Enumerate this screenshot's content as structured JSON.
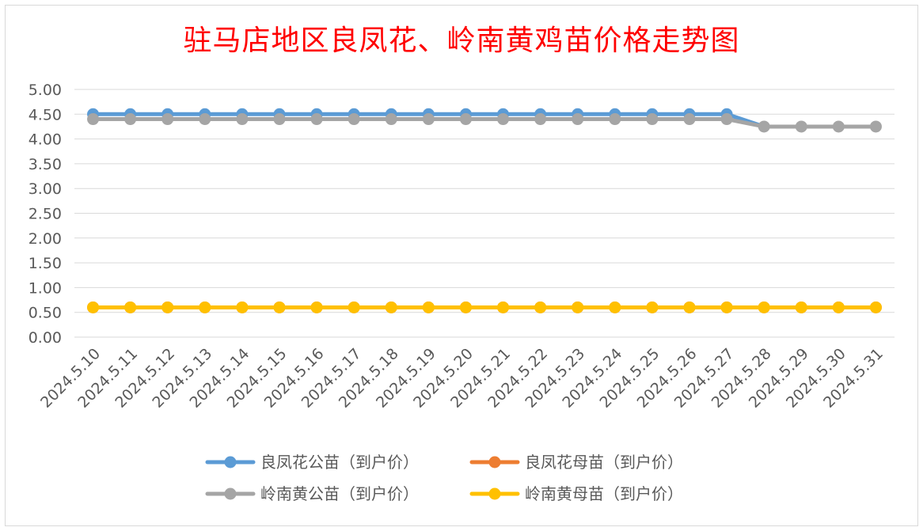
{
  "chart_data": {
    "type": "line",
    "title": "驻马店地区良凤花、岭南黄鸡苗价格走势图",
    "xlabel": "",
    "ylabel": "",
    "ylim": [
      0,
      5
    ],
    "y_ticks": [
      "0.00",
      "0.50",
      "1.00",
      "1.50",
      "2.00",
      "2.50",
      "3.00",
      "3.50",
      "4.00",
      "4.50",
      "5.00"
    ],
    "grid": true,
    "legend_position": "bottom",
    "categories": [
      "2024.5.10",
      "2024.5.11",
      "2024.5.12",
      "2024.5.13",
      "2024.5.14",
      "2024.5.15",
      "2024.5.16",
      "2024.5.17",
      "2024.5.18",
      "2024.5.19",
      "2024.5.20",
      "2024.5.21",
      "2024.5.22",
      "2024.5.23",
      "2024.5.24",
      "2024.5.25",
      "2024.5.26",
      "2024.5.27",
      "2024.5.28",
      "2024.5.29",
      "2024.5.30",
      "2024.5.31"
    ],
    "series": [
      {
        "name": "良凤花公苗（到户价）",
        "color": "#5b9bd5",
        "values": [
          4.5,
          4.5,
          4.5,
          4.5,
          4.5,
          4.5,
          4.5,
          4.5,
          4.5,
          4.5,
          4.5,
          4.5,
          4.5,
          4.5,
          4.5,
          4.5,
          4.5,
          4.5,
          null,
          null,
          null,
          null
        ]
      },
      {
        "name": "良凤花母苗（到户价）",
        "color": "#ed7d31",
        "values": [
          0.6,
          0.6,
          0.6,
          0.6,
          0.6,
          0.6,
          0.6,
          0.6,
          0.6,
          0.6,
          0.6,
          0.6,
          0.6,
          0.6,
          0.6,
          0.6,
          0.6,
          0.6,
          0.6,
          0.6,
          0.6,
          0.6
        ]
      },
      {
        "name": "岭南黄公苗（到户价）",
        "color": "#a5a5a5",
        "values": [
          4.4,
          4.4,
          4.4,
          4.4,
          4.4,
          4.4,
          4.4,
          4.4,
          4.4,
          4.4,
          4.4,
          4.4,
          4.4,
          4.4,
          4.4,
          4.4,
          4.4,
          4.4,
          4.25,
          4.25,
          4.25,
          4.25
        ]
      },
      {
        "name": "岭南黄母苗（到户价）",
        "color": "#ffc000",
        "values": [
          0.6,
          0.6,
          0.6,
          0.6,
          0.6,
          0.6,
          0.6,
          0.6,
          0.6,
          0.6,
          0.6,
          0.6,
          0.6,
          0.6,
          0.6,
          0.6,
          0.6,
          0.6,
          0.6,
          0.6,
          0.6,
          0.6
        ]
      }
    ],
    "extra_segment_note": ""
  }
}
